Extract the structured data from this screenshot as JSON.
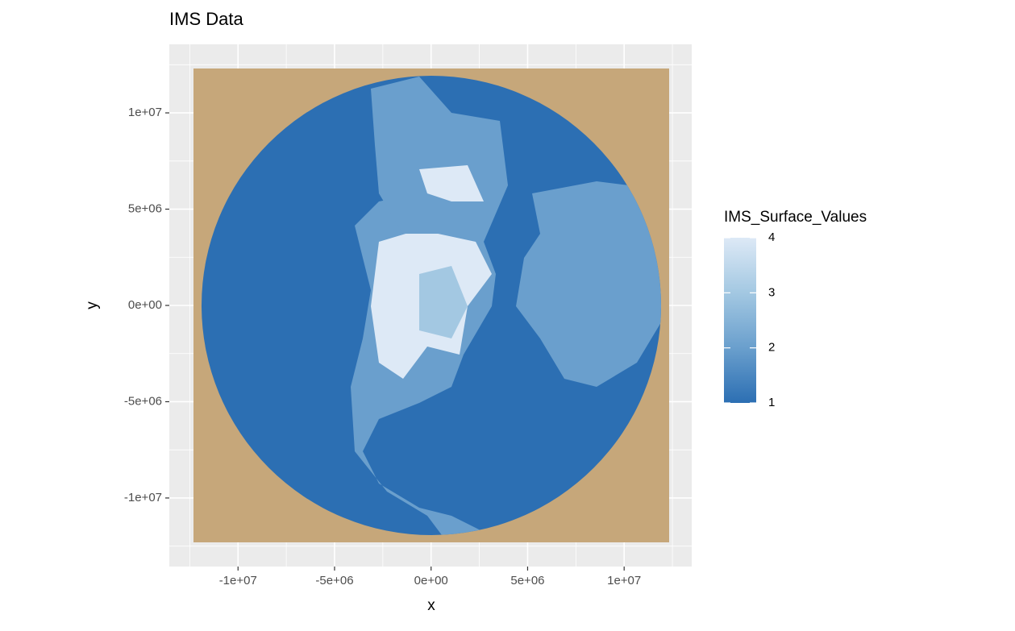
{
  "chart_data": {
    "type": "raster",
    "title": "IMS Data",
    "x_label": "x",
    "y_label": "y",
    "xlim": [
      -13560000,
      13500000
    ],
    "ylim": [
      -13560000,
      13560000
    ],
    "xticks": [
      {
        "value": -10000000,
        "label": "-1e+07"
      },
      {
        "value": -5000000,
        "label": "-5e+06"
      },
      {
        "value": 0,
        "label": "0e+00"
      },
      {
        "value": 5000000,
        "label": "5e+06"
      },
      {
        "value": 10000000,
        "label": "1e+07"
      }
    ],
    "yticks": [
      {
        "value": -10000000,
        "label": "-1e+07"
      },
      {
        "value": -5000000,
        "label": "-5e+06"
      },
      {
        "value": 0,
        "label": "0e+00"
      },
      {
        "value": 5000000,
        "label": "5e+06"
      },
      {
        "value": 10000000,
        "label": "1e+07"
      }
    ],
    "x_minor_breaks": [
      -12500000,
      -7500000,
      -2500000,
      2500000,
      7500000,
      12500000
    ],
    "y_minor_breaks": [
      -12500000,
      -7500000,
      -2500000,
      2500000,
      7500000,
      12500000
    ],
    "grid": true,
    "legend": {
      "title": "IMS_Surface_Values",
      "limits": [
        1,
        4
      ],
      "ticks": [
        1,
        2,
        3,
        4
      ],
      "colors": [
        "#2c6fb3",
        "#6a9fcd",
        "#a3c8e2",
        "#dde9f6"
      ]
    }
  }
}
